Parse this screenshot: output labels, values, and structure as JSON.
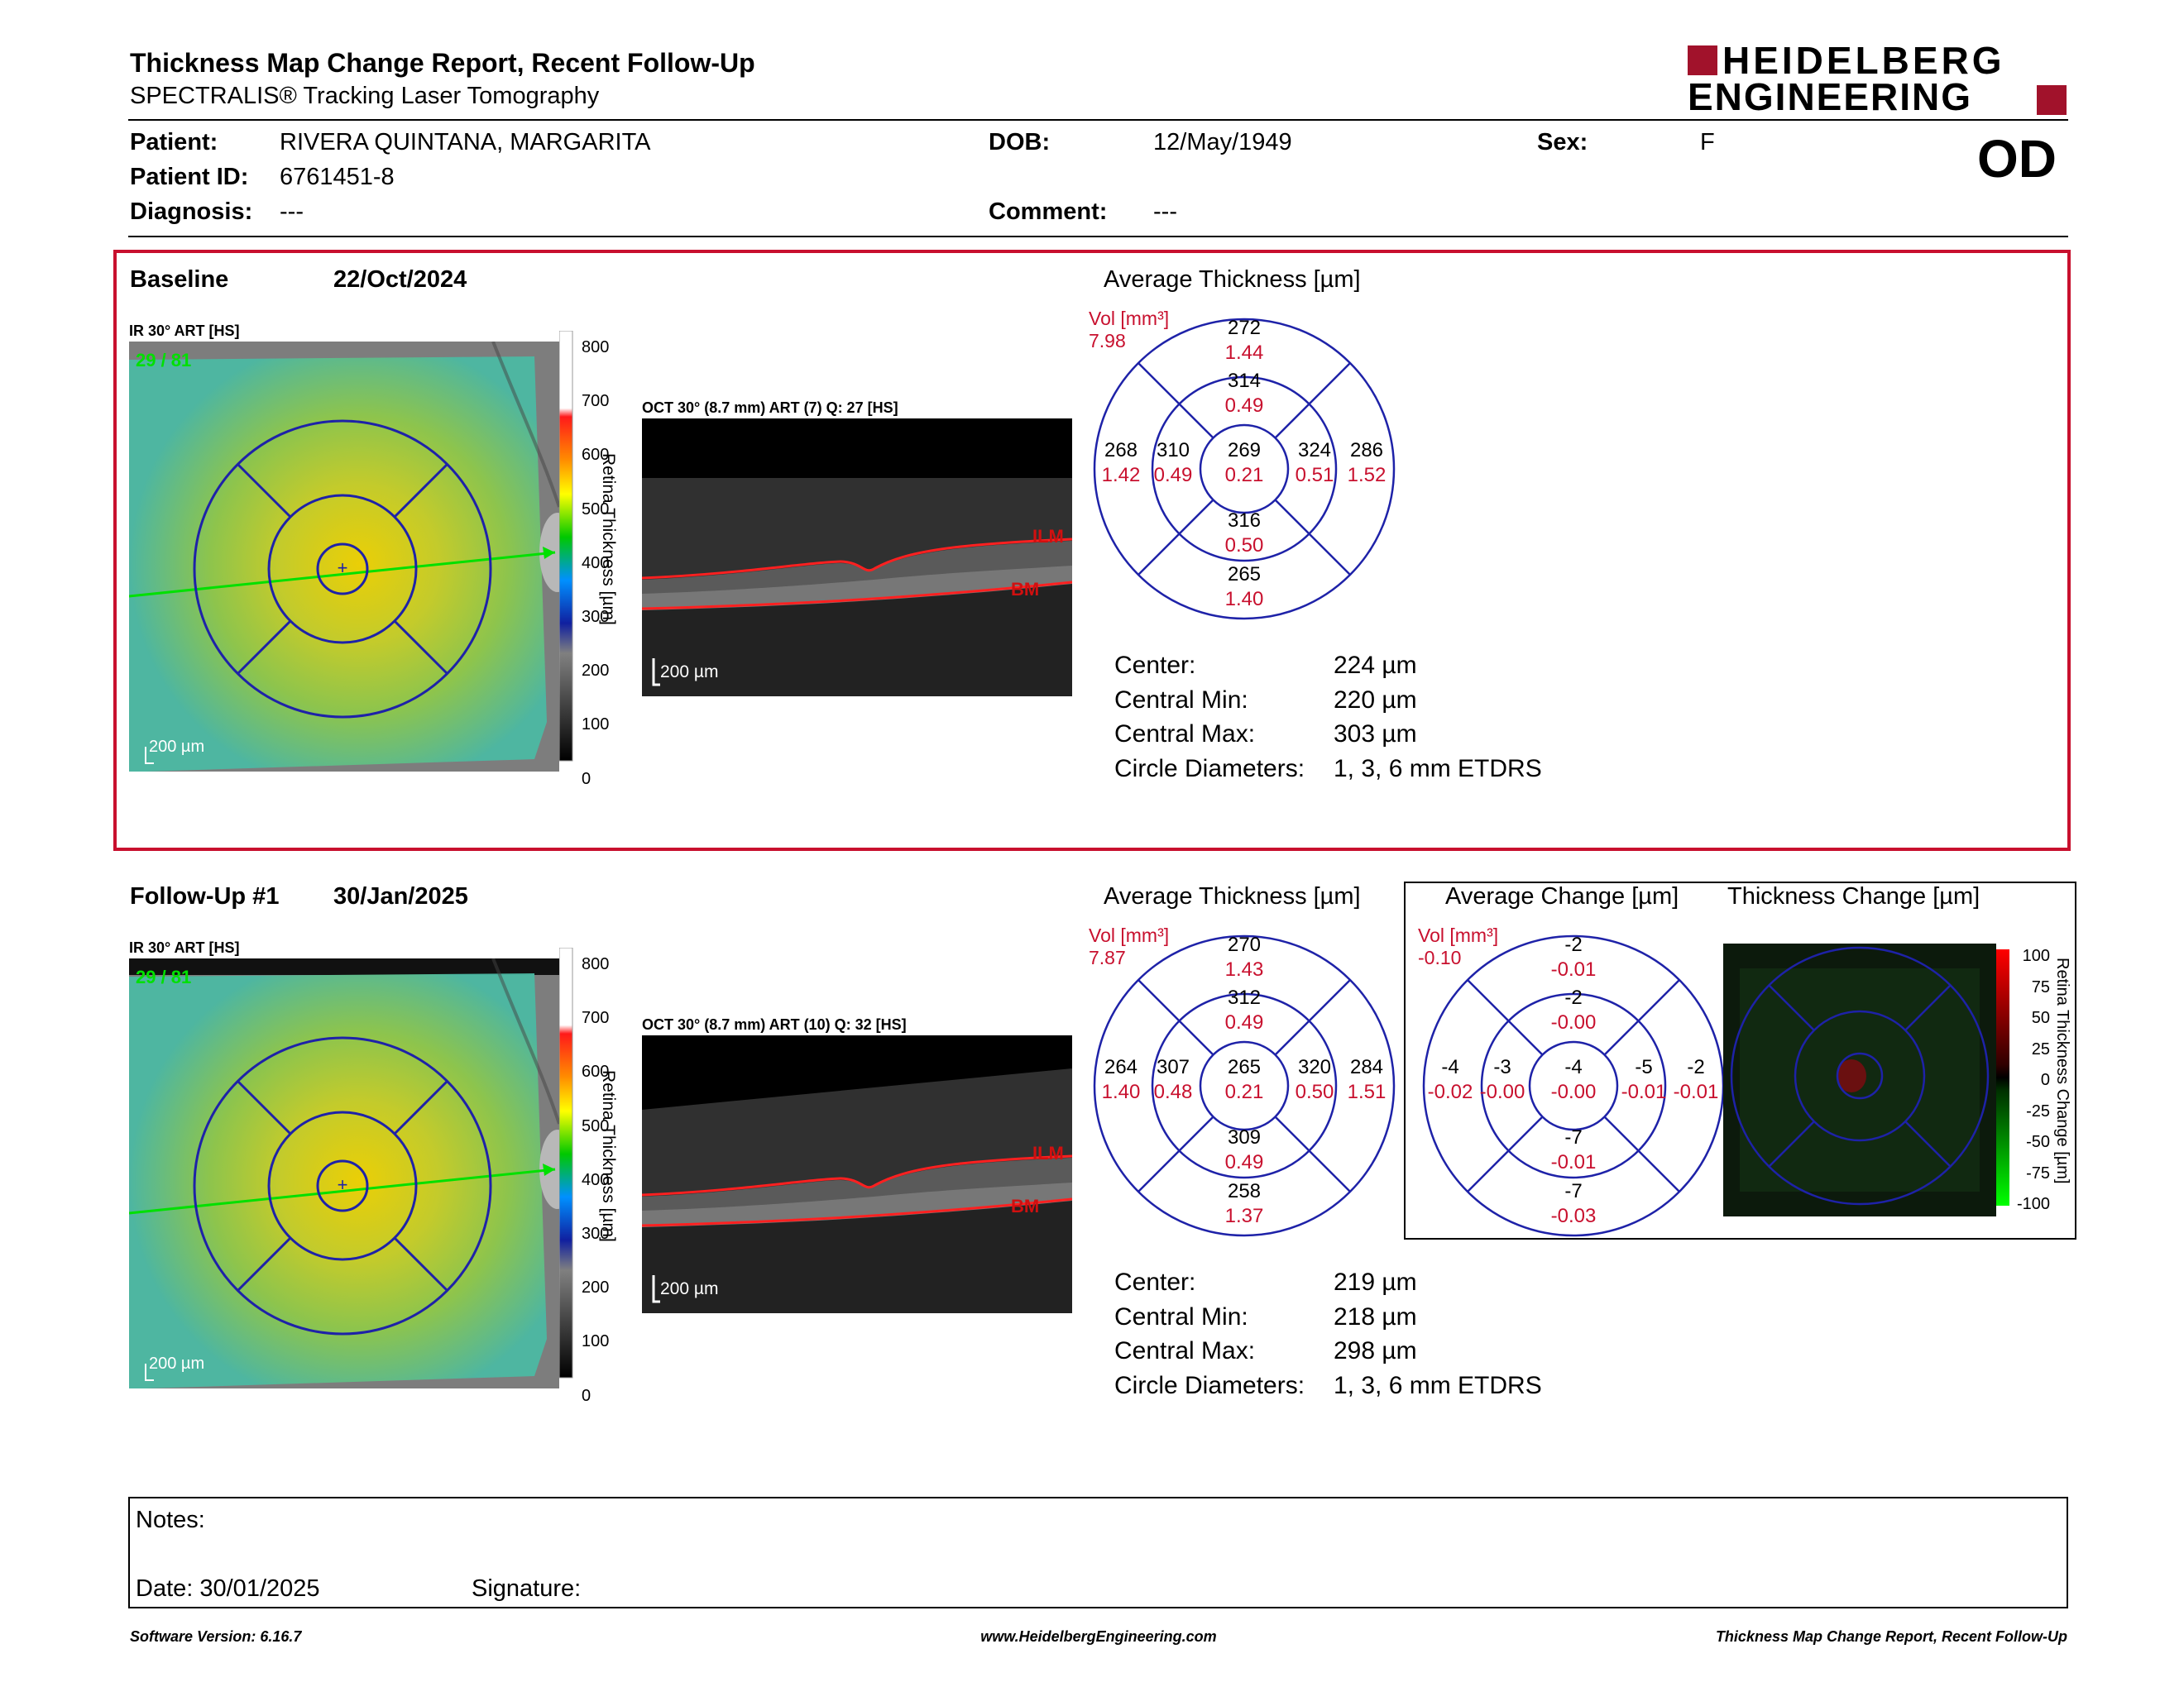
{
  "header": {
    "title": "Thickness Map Change Report, Recent Follow-Up",
    "subtitle": "SPECTRALIS® Tracking Laser Tomography",
    "logo_line1": "HEIDELBERG",
    "logo_line2": "ENGINEERING",
    "eye": "OD"
  },
  "patient": {
    "patient_label": "Patient:",
    "patient_value": "RIVERA QUINTANA, MARGARITA",
    "dob_label": "DOB:",
    "dob_value": "12/May/1949",
    "sex_label": "Sex:",
    "sex_value": "F",
    "id_label": "Patient ID:",
    "id_value": "6761451-8",
    "diagnosis_label": "Diagnosis:",
    "diagnosis_value": "---",
    "comment_label": "Comment:",
    "comment_value": "---"
  },
  "exams": [
    {
      "label": "Baseline",
      "date": "22/Oct/2024",
      "ir_label": "IR 30° ART [HS]",
      "ir_overlay": "29 / 81",
      "oct_label": "OCT 30° (8.7 mm) ART (7) Q: 27 [HS]",
      "scale_bar": "200 µm",
      "colorbar_ticks": [
        "800",
        "700",
        "600",
        "500",
        "400",
        "300",
        "200",
        "100",
        "0"
      ],
      "colorbar_title": "Retina Thickness [µm]",
      "ilm": "ILM",
      "bm": "BM",
      "avg_title": "Average Thickness [µm]",
      "vol_label": "Vol [mm³]",
      "vol_total": "7.98",
      "sectors": {
        "outer_sup": [
          "272",
          "1.44"
        ],
        "inner_sup": [
          "314",
          "0.49"
        ],
        "outer_temp": [
          "268",
          "1.42"
        ],
        "inner_temp": [
          "310",
          "0.49"
        ],
        "center": [
          "269",
          "0.21"
        ],
        "inner_nas": [
          "324",
          "0.51"
        ],
        "outer_nas": [
          "286",
          "1.52"
        ],
        "inner_inf": [
          "316",
          "0.50"
        ],
        "outer_inf": [
          "265",
          "1.40"
        ]
      },
      "stats": {
        "center_label": "Center:",
        "center_value": "224 µm",
        "min_label": "Central Min:",
        "min_value": "220 µm",
        "max_label": "Central Max:",
        "max_value": "303 µm",
        "diam_label": "Circle Diameters:",
        "diam_value": "1, 3, 6 mm ETDRS"
      }
    },
    {
      "label": "Follow-Up #1",
      "date": "30/Jan/2025",
      "ir_label": "IR 30° ART [HS]",
      "ir_overlay": "29 / 81",
      "oct_label": "OCT 30° (8.7 mm) ART (10) Q: 32 [HS]",
      "scale_bar": "200 µm",
      "colorbar_ticks": [
        "800",
        "700",
        "600",
        "500",
        "400",
        "300",
        "200",
        "100",
        "0"
      ],
      "colorbar_title": "Retina Thickness [µm]",
      "ilm": "ILM",
      "bm": "BM",
      "avg_title": "Average Thickness [µm]",
      "vol_label": "Vol [mm³]",
      "vol_total": "7.87",
      "sectors": {
        "outer_sup": [
          "270",
          "1.43"
        ],
        "inner_sup": [
          "312",
          "0.49"
        ],
        "outer_temp": [
          "264",
          "1.40"
        ],
        "inner_temp": [
          "307",
          "0.48"
        ],
        "center": [
          "265",
          "0.21"
        ],
        "inner_nas": [
          "320",
          "0.50"
        ],
        "outer_nas": [
          "284",
          "1.51"
        ],
        "inner_inf": [
          "309",
          "0.49"
        ],
        "outer_inf": [
          "258",
          "1.37"
        ]
      },
      "stats": {
        "center_label": "Center:",
        "center_value": "219 µm",
        "min_label": "Central Min:",
        "min_value": "218 µm",
        "max_label": "Central Max:",
        "max_value": "298 µm",
        "diam_label": "Circle Diameters:",
        "diam_value": "1, 3, 6 mm ETDRS"
      }
    }
  ],
  "change": {
    "avg_title": "Average Change [µm]",
    "vol_label": "Vol [mm³]",
    "vol_total": "-0.10",
    "sectors": {
      "outer_sup": [
        "-2",
        "-0.01"
      ],
      "inner_sup": [
        "-2",
        "-0.00"
      ],
      "outer_temp": [
        "-4",
        "-0.02"
      ],
      "inner_temp": [
        "-3",
        "-0.00"
      ],
      "center": [
        "-4",
        "-0.00"
      ],
      "inner_nas": [
        "-5",
        "-0.01"
      ],
      "outer_nas": [
        "-2",
        "-0.01"
      ],
      "inner_inf": [
        "-7",
        "-0.01"
      ],
      "outer_inf": [
        "-7",
        "-0.03"
      ]
    },
    "map_title": "Thickness Change [µm]",
    "bar_ticks": [
      "100",
      "75",
      "50",
      "25",
      "0",
      "-25",
      "-50",
      "-75",
      "-100"
    ],
    "bar_title": "Retina Thickness Change [µm]"
  },
  "notes": {
    "notes_label": "Notes:",
    "date_label": "Date: 30/01/2025",
    "signature_label": "Signature:"
  },
  "footer": {
    "version": "Software Version: 6.16.7",
    "website": "www.HeidelbergEngineering.com",
    "report_name": "Thickness Map Change Report, Recent Follow-Up"
  },
  "colors": {
    "frame_red": "#c8102e",
    "grid_blue": "#1e22a8",
    "logo_red": "#a1122b"
  }
}
